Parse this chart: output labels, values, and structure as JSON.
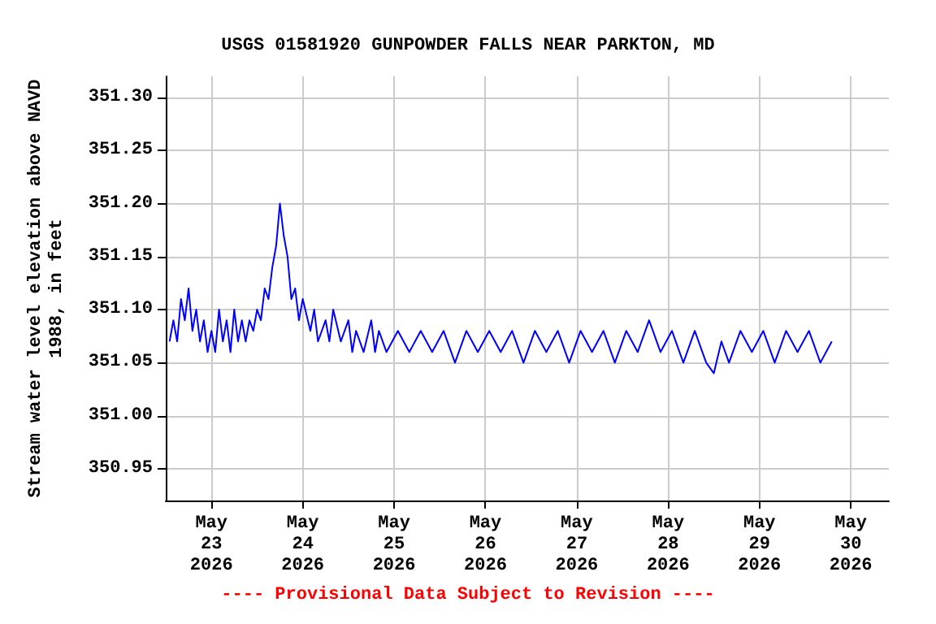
{
  "chart_data": {
    "type": "line",
    "title": "USGS 01581920 GUNPOWDER FALLS NEAR PARKTON, MD",
    "ylabel": "Stream water level elevation above NAVD\n1988, in feet",
    "annotations": [
      "---- Provisional Data Subject to Revision ----"
    ],
    "xlim": [
      "2026-05-22T12:00",
      "2026-05-30T10:00"
    ],
    "xticks": [
      {
        "value": "2026-05-23T00:00",
        "label": "May\n23\n2026"
      },
      {
        "value": "2026-05-24T00:00",
        "label": "May\n24\n2026"
      },
      {
        "value": "2026-05-25T00:00",
        "label": "May\n25\n2026"
      },
      {
        "value": "2026-05-26T00:00",
        "label": "May\n26\n2026"
      },
      {
        "value": "2026-05-27T00:00",
        "label": "May\n27\n2026"
      },
      {
        "value": "2026-05-28T00:00",
        "label": "May\n28\n2026"
      },
      {
        "value": "2026-05-29T00:00",
        "label": "May\n29\n2026"
      },
      {
        "value": "2026-05-30T00:00",
        "label": "May\n30\n2026"
      }
    ],
    "ylim": [
      350.92,
      351.32
    ],
    "yticks": [
      {
        "value": 350.95,
        "label": "350.95"
      },
      {
        "value": 351.0,
        "label": "351.00"
      },
      {
        "value": 351.05,
        "label": "351.05"
      },
      {
        "value": 351.1,
        "label": "351.10"
      },
      {
        "value": 351.15,
        "label": "351.15"
      },
      {
        "value": 351.2,
        "label": "351.20"
      },
      {
        "value": 351.25,
        "label": "351.25"
      },
      {
        "value": 351.3,
        "label": "351.30"
      }
    ],
    "grid": true,
    "marker": "none",
    "line_style": "solid",
    "series": [
      {
        "color": "#0000ff",
        "x": [
          "2026-05-22T13:00",
          "2026-05-22T14:00",
          "2026-05-22T15:00",
          "2026-05-22T16:00",
          "2026-05-22T17:00",
          "2026-05-22T18:00",
          "2026-05-22T19:00",
          "2026-05-22T20:00",
          "2026-05-22T21:00",
          "2026-05-22T22:00",
          "2026-05-22T23:00",
          "2026-05-23T00:00",
          "2026-05-23T01:00",
          "2026-05-23T02:00",
          "2026-05-23T03:00",
          "2026-05-23T04:00",
          "2026-05-23T05:00",
          "2026-05-23T06:00",
          "2026-05-23T07:00",
          "2026-05-23T08:00",
          "2026-05-23T09:00",
          "2026-05-23T10:00",
          "2026-05-23T11:00",
          "2026-05-23T12:00",
          "2026-05-23T13:00",
          "2026-05-23T14:00",
          "2026-05-23T15:00",
          "2026-05-23T16:00",
          "2026-05-23T17:00",
          "2026-05-23T18:00",
          "2026-05-23T19:00",
          "2026-05-23T20:00",
          "2026-05-23T21:00",
          "2026-05-23T22:00",
          "2026-05-23T23:00",
          "2026-05-24T00:00",
          "2026-05-24T02:00",
          "2026-05-24T03:00",
          "2026-05-24T04:00",
          "2026-05-24T06:00",
          "2026-05-24T07:00",
          "2026-05-24T08:00",
          "2026-05-24T10:00",
          "2026-05-24T12:00",
          "2026-05-24T13:00",
          "2026-05-24T14:00",
          "2026-05-24T16:00",
          "2026-05-24T18:00",
          "2026-05-24T19:00",
          "2026-05-24T20:00",
          "2026-05-24T22:00",
          "2026-05-25T01:00",
          "2026-05-25T04:00",
          "2026-05-25T07:00",
          "2026-05-25T10:00",
          "2026-05-25T13:00",
          "2026-05-25T16:00",
          "2026-05-25T19:00",
          "2026-05-25T22:00",
          "2026-05-26T01:00",
          "2026-05-26T04:00",
          "2026-05-26T07:00",
          "2026-05-26T10:00",
          "2026-05-26T13:00",
          "2026-05-26T16:00",
          "2026-05-26T19:00",
          "2026-05-26T22:00",
          "2026-05-27T01:00",
          "2026-05-27T04:00",
          "2026-05-27T07:00",
          "2026-05-27T10:00",
          "2026-05-27T13:00",
          "2026-05-27T16:00",
          "2026-05-27T19:00",
          "2026-05-27T22:00",
          "2026-05-28T01:00",
          "2026-05-28T04:00",
          "2026-05-28T07:00",
          "2026-05-28T10:00",
          "2026-05-28T12:00",
          "2026-05-28T14:00",
          "2026-05-28T16:00",
          "2026-05-28T19:00",
          "2026-05-28T22:00",
          "2026-05-29T01:00",
          "2026-05-29T04:00",
          "2026-05-29T07:00",
          "2026-05-29T10:00",
          "2026-05-29T13:00",
          "2026-05-29T16:00",
          "2026-05-29T19:00"
        ],
        "values": [
          351.07,
          351.09,
          351.07,
          351.11,
          351.09,
          351.12,
          351.08,
          351.1,
          351.07,
          351.09,
          351.06,
          351.08,
          351.06,
          351.1,
          351.07,
          351.09,
          351.06,
          351.1,
          351.07,
          351.09,
          351.07,
          351.09,
          351.08,
          351.1,
          351.09,
          351.12,
          351.11,
          351.14,
          351.16,
          351.2,
          351.17,
          351.15,
          351.11,
          351.12,
          351.09,
          351.11,
          351.08,
          351.1,
          351.07,
          351.09,
          351.07,
          351.1,
          351.07,
          351.09,
          351.06,
          351.08,
          351.06,
          351.09,
          351.06,
          351.08,
          351.06,
          351.08,
          351.06,
          351.08,
          351.06,
          351.08,
          351.05,
          351.08,
          351.06,
          351.08,
          351.06,
          351.08,
          351.05,
          351.08,
          351.06,
          351.08,
          351.05,
          351.08,
          351.06,
          351.08,
          351.05,
          351.08,
          351.06,
          351.09,
          351.06,
          351.08,
          351.05,
          351.08,
          351.05,
          351.04,
          351.07,
          351.05,
          351.08,
          351.06,
          351.08,
          351.05,
          351.08,
          351.06,
          351.08,
          351.05,
          351.07
        ]
      }
    ]
  }
}
